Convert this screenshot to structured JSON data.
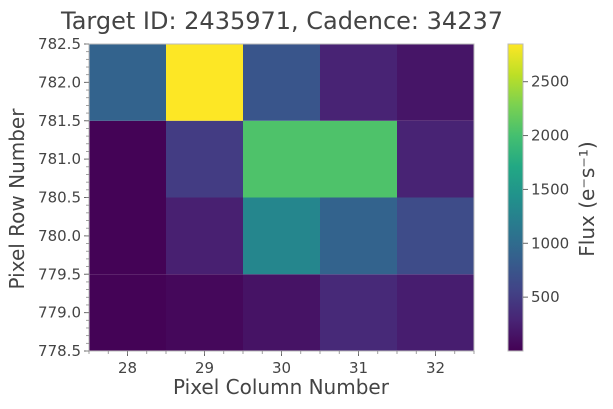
{
  "chart_data": {
    "type": "heatmap",
    "title": "Target ID: 2435971, Cadence: 34237",
    "xlabel": "Pixel Column Number",
    "ylabel": "Pixel Row Number",
    "colorbar_label": "Flux (e⁻s⁻¹)",
    "colormap": "viridis",
    "x_centers": [
      28,
      29,
      30,
      31,
      32
    ],
    "y_centers": [
      779,
      780,
      781,
      782
    ],
    "xlim": [
      27.5,
      32.5
    ],
    "ylim": [
      778.5,
      782.5
    ],
    "x_ticks": [
      28,
      29,
      30,
      31,
      32
    ],
    "x_tick_labels": [
      "28",
      "29",
      "30",
      "31",
      "32"
    ],
    "y_ticks": [
      778.5,
      779.0,
      779.5,
      780.0,
      780.5,
      781.0,
      781.5,
      782.0,
      782.5
    ],
    "y_tick_labels": [
      "778.5",
      "779.0",
      "779.5",
      "780.0",
      "780.5",
      "781.0",
      "781.5",
      "782.0",
      "782.5"
    ],
    "values": [
      [
        20,
        60,
        150,
        330,
        230
      ],
      [
        20,
        250,
        1300,
        900,
        650
      ],
      [
        20,
        500,
        2050,
        2050,
        280
      ],
      [
        900,
        2850,
        750,
        280,
        160
      ]
    ],
    "color_range": [
      0,
      2850
    ],
    "colorbar_ticks": [
      500,
      1000,
      1500,
      2000,
      2500
    ],
    "colorbar_tick_labels": [
      "500",
      "1000",
      "1500",
      "2000",
      "2500"
    ],
    "grid": false
  }
}
